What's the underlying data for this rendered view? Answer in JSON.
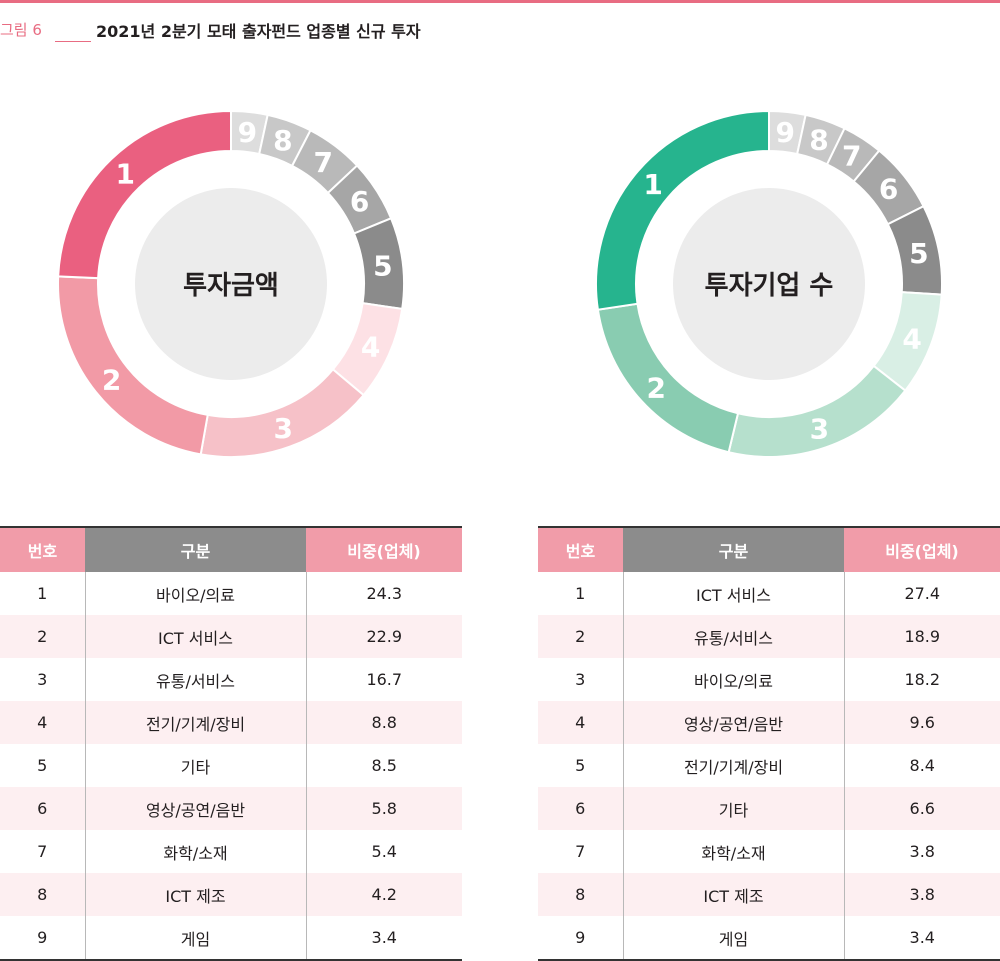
{
  "figure": {
    "label": "그림 6",
    "title": "2021년 2분기 모태 출자펀드 업종별 신규 투자"
  },
  "chart_data": [
    {
      "type": "pie",
      "center_label": "투자금액",
      "categories": [
        "1",
        "2",
        "3",
        "4",
        "5",
        "6",
        "7",
        "8",
        "9"
      ],
      "values": [
        24.3,
        22.9,
        16.7,
        8.8,
        8.5,
        5.8,
        5.4,
        4.2,
        3.4
      ],
      "colors": [
        "#ea6080",
        "#f29aa6",
        "#f6c1c8",
        "#fde1e5",
        "#8b8b8b",
        "#a6a6a6",
        "#b9b9b9",
        "#c8c8c8",
        "#dddddd"
      ]
    },
    {
      "type": "pie",
      "center_label": "투자기업 수",
      "categories": [
        "1",
        "2",
        "3",
        "4",
        "5",
        "6",
        "7",
        "8",
        "9"
      ],
      "values": [
        27.4,
        18.9,
        18.2,
        9.6,
        8.4,
        6.6,
        3.8,
        3.8,
        3.4
      ],
      "colors": [
        "#26b48e",
        "#89ccb1",
        "#b6e0cd",
        "#d9efe5",
        "#8b8b8b",
        "#a6a6a6",
        "#b9b9b9",
        "#c8c8c8",
        "#dddddd"
      ]
    }
  ],
  "tables": {
    "headers": {
      "no": "번호",
      "category": "구분",
      "ratio": "비중(업체)"
    },
    "left": [
      {
        "no": "1",
        "category": "바이오/의료",
        "ratio": "24.3"
      },
      {
        "no": "2",
        "category": "ICT 서비스",
        "ratio": "22.9"
      },
      {
        "no": "3",
        "category": "유통/서비스",
        "ratio": "16.7"
      },
      {
        "no": "4",
        "category": "전기/기계/장비",
        "ratio": "8.8"
      },
      {
        "no": "5",
        "category": "기타",
        "ratio": "8.5"
      },
      {
        "no": "6",
        "category": "영상/공연/음반",
        "ratio": "5.8"
      },
      {
        "no": "7",
        "category": "화학/소재",
        "ratio": "5.4"
      },
      {
        "no": "8",
        "category": "ICT 제조",
        "ratio": "4.2"
      },
      {
        "no": "9",
        "category": "게임",
        "ratio": "3.4"
      }
    ],
    "right": [
      {
        "no": "1",
        "category": "ICT 서비스",
        "ratio": "27.4"
      },
      {
        "no": "2",
        "category": "유통/서비스",
        "ratio": "18.9"
      },
      {
        "no": "3",
        "category": "바이오/의료",
        "ratio": "18.2"
      },
      {
        "no": "4",
        "category": "영상/공연/음반",
        "ratio": "9.6"
      },
      {
        "no": "5",
        "category": "전기/기계/장비",
        "ratio": "8.4"
      },
      {
        "no": "6",
        "category": "기타",
        "ratio": "6.6"
      },
      {
        "no": "7",
        "category": "화학/소재",
        "ratio": "3.8"
      },
      {
        "no": "8",
        "category": "ICT 제조",
        "ratio": "3.8"
      },
      {
        "no": "9",
        "category": "게임",
        "ratio": "3.4"
      }
    ]
  }
}
